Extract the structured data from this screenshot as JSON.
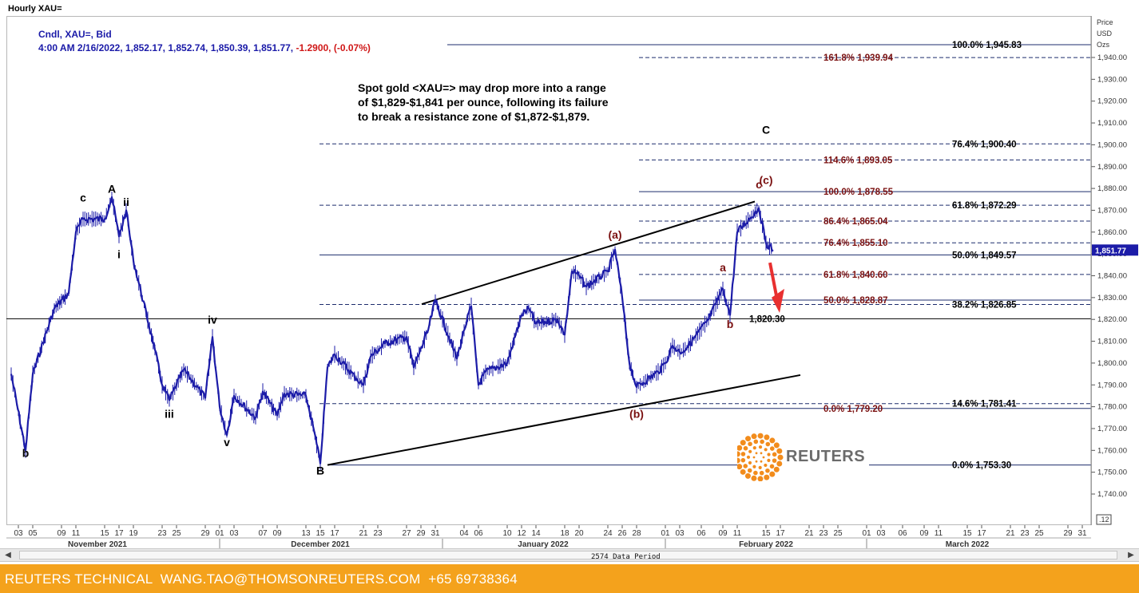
{
  "window_title": "Hourly XAU=",
  "header": {
    "line1": "Cndl, XAU=, Bid",
    "line2_main": "4:00 AM 2/16/2022, 1,852.17, 1,852.74, 1,850.39, 1,851.77, ",
    "line2_change": "-1.2900, (-0.07%)"
  },
  "annotation_note": {
    "line1": "Spot gold <XAU=> may drop more into a range",
    "line2": "of $1,829-$1,841  per ounce, following its failure",
    "line3": "to break a resistance zone of $1,872-$1,879."
  },
  "price_axis": {
    "label1": "Price",
    "label2": "USD",
    "label3": "Ozs",
    "current_price_tag": "1,851.77",
    "bottom_tag": ".12"
  },
  "scrollbar": {
    "data_period": "2574 Data Period",
    "left_arrow": "◀",
    "right_arrow": "▶"
  },
  "footer": {
    "text": "REUTERS TECHNICAL  WANG.TAO@THOMSONREUTERS.COM  +65 69738364"
  },
  "logo": {
    "wordmark": "REUTERS"
  },
  "colors": {
    "candle": "#1c1ca8",
    "fib_black": "#000000",
    "fib_red": "#7a1010",
    "line_navy": "#1c2c6c",
    "arrow": "#e83030",
    "footer": "#f4a21c"
  },
  "chart_data": {
    "type": "candlestick-line",
    "instrument": "XAU=",
    "interval": "Hourly",
    "ylim": [
      1735,
      1960
    ],
    "y_ticks": [
      "1,740.00",
      "1,750.00",
      "1,760.00",
      "1,770.00",
      "1,780.00",
      "1,790.00",
      "1,800.00",
      "1,810.00",
      "1,820.00",
      "1,830.00",
      "1,840.00",
      "1,850.00",
      "1,860.00",
      "1,870.00",
      "1,880.00",
      "1,890.00",
      "1,900.00",
      "1,910.00",
      "1,920.00",
      "1,930.00",
      "1,940.00"
    ],
    "x_day_ticks": [
      "03",
      "05",
      "09",
      "11",
      "15",
      "17",
      "19",
      "23",
      "25",
      "29",
      "01",
      "03",
      "07",
      "09",
      "13",
      "15",
      "17",
      "21",
      "23",
      "27",
      "29",
      "31",
      "04",
      "06",
      "10",
      "12",
      "14",
      "18",
      "20",
      "24",
      "26",
      "28",
      "01",
      "03",
      "06",
      "09",
      "11",
      "15",
      "17",
      "21",
      "23",
      "25",
      "01",
      "03",
      "06",
      "09",
      "11",
      "15",
      "17",
      "21",
      "23",
      "25",
      "29",
      "31"
    ],
    "x_months": [
      "November 2021",
      "December 2021",
      "January 2022",
      "February 2022",
      "March 2022"
    ],
    "price_path": [
      {
        "date": "2021-11-02",
        "price": 1795
      },
      {
        "date": "2021-11-04",
        "price": 1760
      },
      {
        "date": "2021-11-05",
        "price": 1795
      },
      {
        "date": "2021-11-08",
        "price": 1825
      },
      {
        "date": "2021-11-10",
        "price": 1832
      },
      {
        "date": "2021-11-11",
        "price": 1860
      },
      {
        "date": "2021-11-12",
        "price": 1866
      },
      {
        "date": "2021-11-15",
        "price": 1866
      },
      {
        "date": "2021-11-16",
        "price": 1876
      },
      {
        "date": "2021-11-17",
        "price": 1858
      },
      {
        "date": "2021-11-18",
        "price": 1870
      },
      {
        "date": "2021-11-19",
        "price": 1847
      },
      {
        "date": "2021-11-22",
        "price": 1806
      },
      {
        "date": "2021-11-23",
        "price": 1790
      },
      {
        "date": "2021-11-24",
        "price": 1783
      },
      {
        "date": "2021-11-26",
        "price": 1797
      },
      {
        "date": "2021-11-29",
        "price": 1784
      },
      {
        "date": "2021-11-30",
        "price": 1812
      },
      {
        "date": "2021-12-01",
        "price": 1780
      },
      {
        "date": "2021-12-02",
        "price": 1767
      },
      {
        "date": "2021-12-03",
        "price": 1785
      },
      {
        "date": "2021-12-06",
        "price": 1775
      },
      {
        "date": "2021-12-07",
        "price": 1787
      },
      {
        "date": "2021-12-09",
        "price": 1776
      },
      {
        "date": "2021-12-10",
        "price": 1786
      },
      {
        "date": "2021-12-13",
        "price": 1785
      },
      {
        "date": "2021-12-14",
        "price": 1771
      },
      {
        "date": "2021-12-15",
        "price": 1754
      },
      {
        "date": "2021-12-16",
        "price": 1798
      },
      {
        "date": "2021-12-17",
        "price": 1804
      },
      {
        "date": "2021-12-20",
        "price": 1793
      },
      {
        "date": "2021-12-21",
        "price": 1790
      },
      {
        "date": "2021-12-22",
        "price": 1803
      },
      {
        "date": "2021-12-24",
        "price": 1809
      },
      {
        "date": "2021-12-27",
        "price": 1812
      },
      {
        "date": "2021-12-28",
        "price": 1798
      },
      {
        "date": "2021-12-30",
        "price": 1815
      },
      {
        "date": "2021-12-31",
        "price": 1829
      },
      {
        "date": "2022-01-03",
        "price": 1802
      },
      {
        "date": "2022-01-04",
        "price": 1815
      },
      {
        "date": "2022-01-05",
        "price": 1826
      },
      {
        "date": "2022-01-06",
        "price": 1790
      },
      {
        "date": "2022-01-07",
        "price": 1796
      },
      {
        "date": "2022-01-10",
        "price": 1800
      },
      {
        "date": "2022-01-12",
        "price": 1822
      },
      {
        "date": "2022-01-13",
        "price": 1825
      },
      {
        "date": "2022-01-14",
        "price": 1818
      },
      {
        "date": "2022-01-17",
        "price": 1820
      },
      {
        "date": "2022-01-18",
        "price": 1813
      },
      {
        "date": "2022-01-19",
        "price": 1842
      },
      {
        "date": "2022-01-20",
        "price": 1840
      },
      {
        "date": "2022-01-21",
        "price": 1835
      },
      {
        "date": "2022-01-24",
        "price": 1842
      },
      {
        "date": "2022-01-25",
        "price": 1852
      },
      {
        "date": "2022-01-26",
        "price": 1830
      },
      {
        "date": "2022-01-27",
        "price": 1800
      },
      {
        "date": "2022-01-28",
        "price": 1789
      },
      {
        "date": "2022-01-31",
        "price": 1796
      },
      {
        "date": "2022-02-01",
        "price": 1800
      },
      {
        "date": "2022-02-02",
        "price": 1808
      },
      {
        "date": "2022-02-03",
        "price": 1805
      },
      {
        "date": "2022-02-04",
        "price": 1807
      },
      {
        "date": "2022-02-07",
        "price": 1820
      },
      {
        "date": "2022-02-08",
        "price": 1827
      },
      {
        "date": "2022-02-09",
        "price": 1834
      },
      {
        "date": "2022-02-10",
        "price": 1822
      },
      {
        "date": "2022-02-11",
        "price": 1860
      },
      {
        "date": "2022-02-14",
        "price": 1871
      },
      {
        "date": "2022-02-15",
        "price": 1855
      },
      {
        "date": "2022-02-16",
        "price": 1851.77
      }
    ],
    "fib_levels_black": [
      {
        "label": "100.0%",
        "value": 1945.83,
        "value_label": "1,945.83"
      },
      {
        "label": "76.4%",
        "value": 1900.4,
        "value_label": "1,900.40"
      },
      {
        "label": "61.8%",
        "value": 1872.29,
        "value_label": "1,872.29"
      },
      {
        "label": "50.0%",
        "value": 1849.57,
        "value_label": "1,849.57"
      },
      {
        "label": "38.2%",
        "value": 1826.85,
        "value_label": "1,826.85"
      },
      {
        "label": "14.6%",
        "value": 1781.41,
        "value_label": "1,781.41"
      },
      {
        "label": "0.0%",
        "value": 1753.3,
        "value_label": "1,753.30"
      }
    ],
    "fib_levels_red": [
      {
        "label": "161.8%",
        "value": 1939.94,
        "value_label": "1,939.94"
      },
      {
        "label": "114.6%",
        "value": 1893.05,
        "value_label": "1,893.05"
      },
      {
        "label": "100.0%",
        "value": 1878.55,
        "value_label": "1,878.55"
      },
      {
        "label": "86.4%",
        "value": 1865.04,
        "value_label": "1,865.04"
      },
      {
        "label": "76.4%",
        "value": 1855.1,
        "value_label": "1,855.10"
      },
      {
        "label": "61.8%",
        "value": 1840.6,
        "value_label": "1,840.60"
      },
      {
        "label": "50.0%",
        "value": 1828.87,
        "value_label": "1,828.87"
      },
      {
        "label": "0.0%",
        "value": 1779.2,
        "value_label": "1,779.20"
      }
    ],
    "support_line": {
      "value": 1820.3,
      "label": "1,820.30"
    },
    "wave_labels": [
      {
        "text": "b",
        "date": "2021-11-04",
        "price": 1757,
        "color": "black"
      },
      {
        "text": "c",
        "date": "2021-11-12",
        "price": 1874,
        "color": "black"
      },
      {
        "text": "A",
        "date": "2021-11-16",
        "price": 1878,
        "color": "black"
      },
      {
        "text": "ii",
        "date": "2021-11-18",
        "price": 1872,
        "color": "black"
      },
      {
        "text": "i",
        "date": "2021-11-17",
        "price": 1848,
        "color": "black"
      },
      {
        "text": "iv",
        "date": "2021-11-30",
        "price": 1818,
        "color": "black"
      },
      {
        "text": "iii",
        "date": "2021-11-24",
        "price": 1775,
        "color": "black"
      },
      {
        "text": "v",
        "date": "2021-12-02",
        "price": 1762,
        "color": "black"
      },
      {
        "text": "B",
        "date": "2021-12-15",
        "price": 1749,
        "color": "black"
      },
      {
        "text": "C",
        "date": "2022-02-15",
        "price": 1905,
        "color": "black"
      },
      {
        "text": "(a)",
        "date": "2022-01-25",
        "price": 1857,
        "color": "red"
      },
      {
        "text": "(b)",
        "date": "2022-01-28",
        "price": 1775,
        "color": "red"
      },
      {
        "text": "a",
        "date": "2022-02-09",
        "price": 1842,
        "color": "red"
      },
      {
        "text": "b",
        "date": "2022-02-10",
        "price": 1816,
        "color": "red"
      },
      {
        "text": "c",
        "date": "2022-02-14",
        "price": 1880,
        "color": "red"
      },
      {
        "text": "(c)",
        "date": "2022-02-15",
        "price": 1882,
        "color": "red"
      }
    ]
  }
}
